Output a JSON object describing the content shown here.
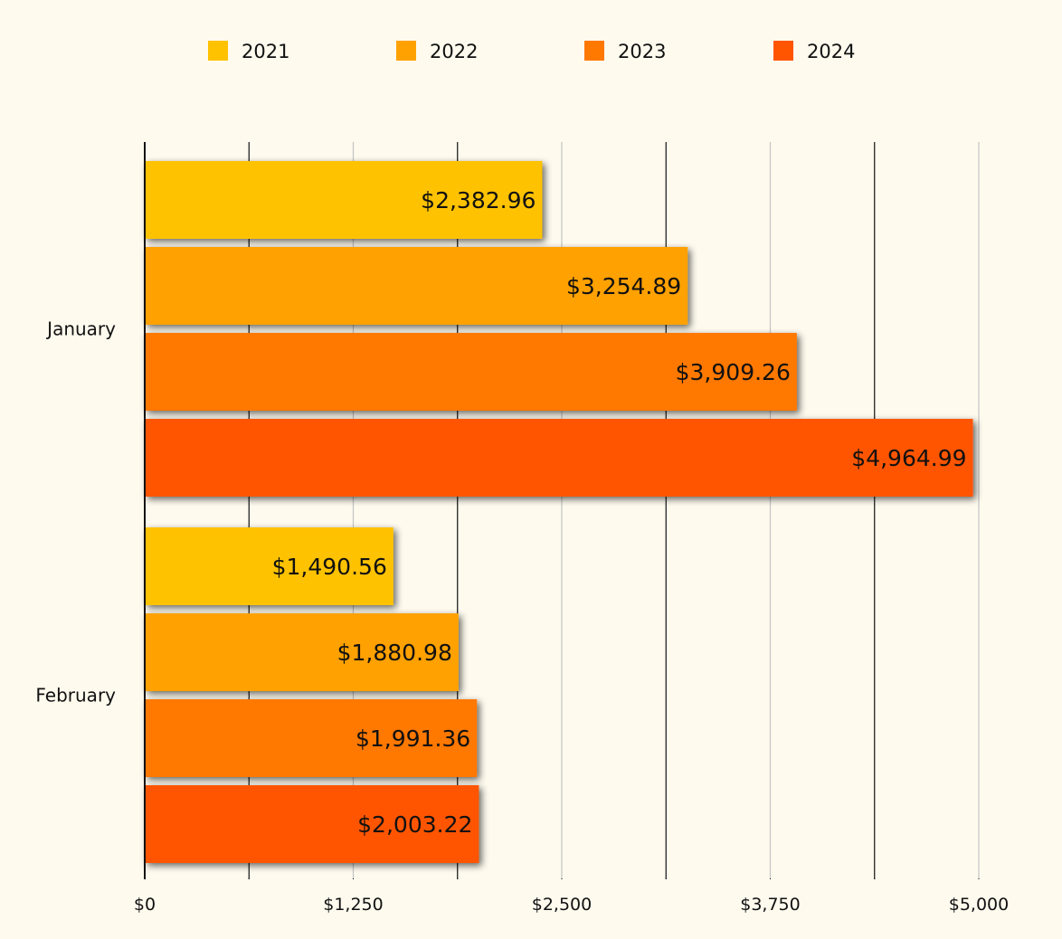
{
  "chart_data": {
    "type": "bar",
    "orientation": "horizontal",
    "categories": [
      "January",
      "February"
    ],
    "series": [
      {
        "name": "2021",
        "color": "#ffc200",
        "values": [
          2382.96,
          1490.56
        ]
      },
      {
        "name": "2022",
        "color": "#ffa100",
        "values": [
          3254.89,
          1880.98
        ]
      },
      {
        "name": "2023",
        "color": "#ff7800",
        "values": [
          3909.26,
          1991.36
        ]
      },
      {
        "name": "2024",
        "color": "#ff5500",
        "values": [
          4964.99,
          2003.22
        ]
      }
    ],
    "data_labels": [
      [
        "$2,382.96",
        "$1,490.56"
      ],
      [
        "$3,254.89",
        "$1,880.98"
      ],
      [
        "$3,909.26",
        "$1,991.36"
      ],
      [
        "$4,964.99",
        "$2,003.22"
      ]
    ],
    "x_ticks": [
      0,
      625,
      1250,
      1875,
      2500,
      3125,
      3750,
      4375,
      5000
    ],
    "x_tick_labels": [
      "$0",
      "",
      "$1,250",
      "",
      "$2,500",
      "",
      "$3,750",
      "",
      "$5,000"
    ],
    "xlim": [
      0,
      5000
    ],
    "grid": true,
    "legend_position": "top",
    "title": "",
    "xlabel": "",
    "ylabel": ""
  }
}
